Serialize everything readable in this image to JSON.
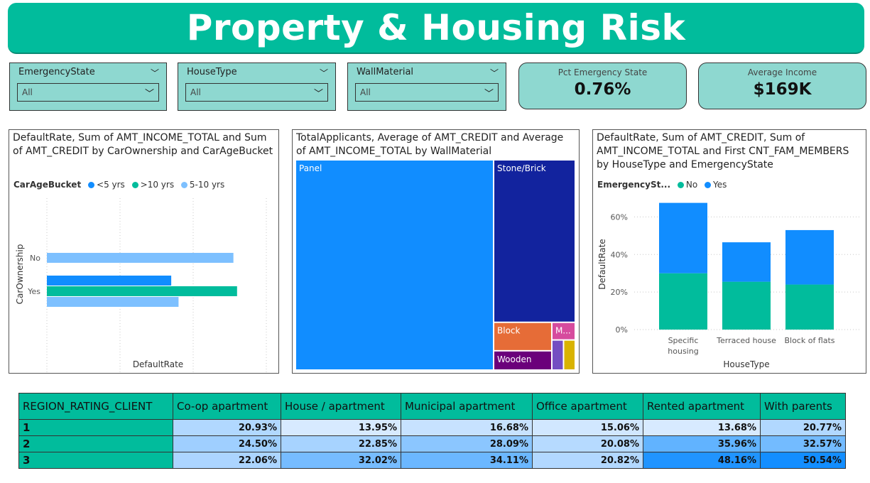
{
  "header": {
    "title": "Property & Housing Risk"
  },
  "slicers": [
    {
      "label": "EmergencyState",
      "value": "All"
    },
    {
      "label": "HouseType",
      "value": "All"
    },
    {
      "label": "WallMaterial",
      "value": "All"
    }
  ],
  "kpis": [
    {
      "label": "Pct Emergency State",
      "value": "0.76%"
    },
    {
      "label": "Average Income",
      "value": "$169K"
    }
  ],
  "panels": {
    "car": {
      "title": "DefaultRate, Sum of AMT_INCOME_TOTAL and Sum of AMT_CREDIT by CarOwnership and CarAgeBucket"
    },
    "wall": {
      "title": "TotalApplicants, Average of AMT_CREDIT and Average of AMT_INCOME_TOTAL by WallMaterial"
    },
    "house": {
      "title": "DefaultRate, Sum of AMT_CREDIT, Sum of AMT_INCOME_TOTAL and First CNT_FAM_MEMBERS by HouseType and EmergencyState"
    }
  },
  "chart_data": [
    {
      "type": "bar",
      "orientation": "horizontal",
      "legend_title": "CarAgeBucket",
      "categories": [
        "No",
        "Yes"
      ],
      "series": [
        {
          "name": "<5 yrs",
          "color": "#118DFF",
          "values": [
            null,
            0.17
          ]
        },
        {
          "name": ">10 yrs",
          "color": "#01BC9C",
          "values": [
            null,
            0.26
          ]
        },
        {
          "name": "5-10 yrs",
          "color": "#7DC0FF",
          "values": [
            0.255,
            0.18
          ]
        }
      ],
      "xlabel": "DefaultRate",
      "ylabel": "CarOwnership",
      "xlim": [
        0,
        0.3
      ],
      "xticks": [
        "0%",
        "10%",
        "20%",
        "30%"
      ],
      "grid": true
    },
    {
      "type": "treemap",
      "categories": [
        "Panel",
        "Stone/Brick",
        "Block",
        "M...",
        "Wooden",
        "",
        "",
        ""
      ],
      "colors": [
        "#118DFF",
        "#12239E",
        "#E66C37",
        "#D64B9E",
        "#6B007B",
        "#744EC2",
        "#D9B300",
        "#E044A7"
      ]
    },
    {
      "type": "bar",
      "stacked": true,
      "legend_title": "EmergencySt...",
      "categories": [
        "Specific housing",
        "Terraced house",
        "Block of flats"
      ],
      "series": [
        {
          "name": "No",
          "color": "#01BC9C",
          "values": [
            0.3,
            0.255,
            0.24
          ]
        },
        {
          "name": "Yes",
          "color": "#118DFF",
          "values": [
            0.375,
            0.21,
            0.29
          ]
        }
      ],
      "xlabel": "HouseType",
      "ylabel": "DefaultRate",
      "ylim": [
        0,
        0.7
      ],
      "yticks": [
        "0%",
        "20%",
        "40%",
        "60%"
      ],
      "grid": true
    }
  ],
  "matrix": {
    "header": "REGION_RATING_CLIENT",
    "columns": [
      "Co-op apartment",
      "House / apartment",
      "Municipal apartment",
      "Office apartment",
      "Rented apartment",
      "With parents"
    ],
    "rows": [
      {
        "label": "1",
        "values": [
          "20.93%",
          "13.95%",
          "16.68%",
          "15.06%",
          "13.68%",
          "20.77%"
        ],
        "levels": [
          0.21,
          0.14,
          0.17,
          0.15,
          0.14,
          0.21
        ]
      },
      {
        "label": "2",
        "values": [
          "24.50%",
          "22.85%",
          "28.09%",
          "20.08%",
          "35.96%",
          "32.57%"
        ],
        "levels": [
          0.245,
          0.2285,
          0.2809,
          0.2008,
          0.3596,
          0.3257
        ]
      },
      {
        "label": "3",
        "values": [
          "22.06%",
          "32.02%",
          "34.11%",
          "20.82%",
          "48.16%",
          "50.54%"
        ],
        "levels": [
          0.2206,
          0.3202,
          0.3411,
          0.2082,
          0.4816,
          0.5054
        ]
      }
    ]
  }
}
